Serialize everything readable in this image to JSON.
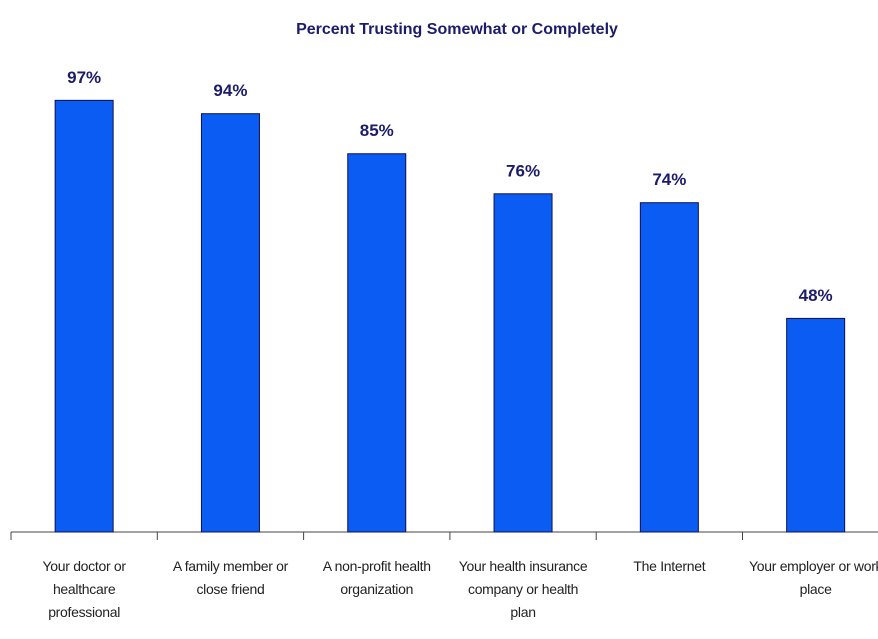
{
  "chart_data": {
    "type": "bar",
    "title": "Percent Trusting Somewhat or Completely",
    "categories": [
      "Your doctor or healthcare professional",
      "A family member or close friend",
      "A non-profit health organization",
      "Your health insurance company or health plan",
      "The Internet",
      "Your employer or work place"
    ],
    "values": [
      97,
      94,
      85,
      76,
      74,
      48
    ],
    "value_labels": [
      "97%",
      "94%",
      "85%",
      "76%",
      "74%",
      "48%"
    ],
    "color": "#0a5cf2",
    "ylim": [
      0,
      100
    ]
  }
}
